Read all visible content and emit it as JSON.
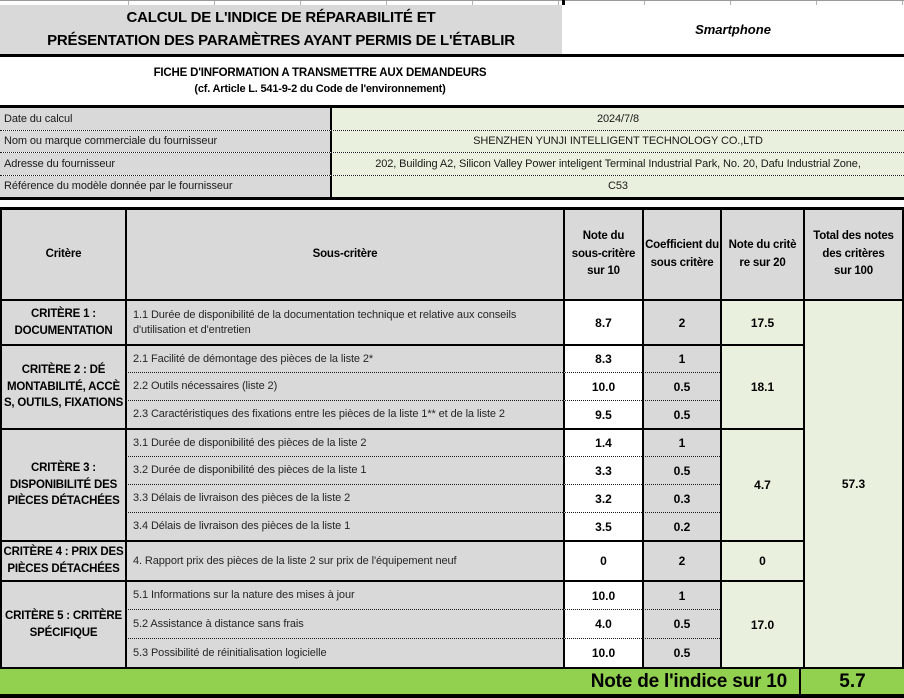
{
  "header": {
    "title": "CALCUL DE L'INDICE DE RÉPARABILITÉ ET\nPRÉSENTATION DES PARAMÈTRES AYANT PERMIS DE L'ÉTABLIR",
    "product": "Smartphone"
  },
  "subtitle": {
    "line1": "FICHE D'INFORMATION A TRANSMETTRE AUX DEMANDEURS",
    "line2": "(cf. Article L. 541-9-2 du Code de l'environnement)"
  },
  "info": {
    "rows": [
      {
        "label": "Date du calcul",
        "value": "2024/7/8"
      },
      {
        "label": "Nom ou marque commerciale du fournisseur",
        "value": "SHENZHEN YUNJI INTELLIGENT TECHNOLOGY CO.,LTD"
      },
      {
        "label": "Adresse du fournisseur",
        "value": "202, Building A2, Silicon Valley Power inteligent Terminal Industrial Park, No. 20, Dafu Industrial Zone,"
      },
      {
        "label": "Référence du modèle donnée par le fournisseur",
        "value": "C53"
      }
    ]
  },
  "table": {
    "headers": {
      "critere": "Critère",
      "sous_critere": "Sous-critère",
      "note10": "Note du\nsous-critère\nsur 10",
      "coeff": "Coefficient du\nsous critère",
      "note20": "Note du critè\nre sur 20",
      "total": "Total des notes\ndes critères\nsur 100"
    },
    "groups": [
      {
        "critere": "CRITÈRE 1 :\nDOCUMENTATION",
        "note20": "17.5",
        "rows": [
          {
            "label": "1.1 Durée de disponibilité de la documentation technique et relative aux conseils d'utilisation et d'entretien",
            "note": "8.7",
            "coeff": "2"
          }
        ]
      },
      {
        "critere": "CRITÈRE 2 : DÉ\nMONTABILITÉ, ACCÈ\nS, OUTILS, FIXATIONS",
        "note20": "18.1",
        "rows": [
          {
            "label": "2.1 Facilité de démontage des pièces de la liste 2*",
            "note": "8.3",
            "coeff": "1"
          },
          {
            "label": "2.2 Outils nécessaires (liste 2)",
            "note": "10.0",
            "coeff": "0.5"
          },
          {
            "label": "2.3 Caractéristiques des fixations entre les pièces de la liste 1** et de la liste 2",
            "note": "9.5",
            "coeff": "0.5"
          }
        ]
      },
      {
        "critere": "CRITÈRE 3 :\nDISPONIBILITÉ DES\nPIÈCES DÉTACHÉES",
        "note20": "4.7",
        "rows": [
          {
            "label": "3.1 Durée de disponibilité des pièces de la liste 2",
            "note": "1.4",
            "coeff": "1"
          },
          {
            "label": "3.2 Durée de disponibilité des pièces de la liste 1",
            "note": "3.3",
            "coeff": "0.5"
          },
          {
            "label": "3.3 Délais de livraison des pièces de la liste 2",
            "note": "3.2",
            "coeff": "0.3"
          },
          {
            "label": "3.4 Délais de livraison des pièces de la liste 1",
            "note": "3.5",
            "coeff": "0.2"
          }
        ]
      },
      {
        "critere": "CRITÈRE 4 : PRIX DES\nPIÈCES DÉTACHÉES",
        "note20": "0",
        "rows": [
          {
            "label": "4. Rapport prix des pièces de la liste 2 sur prix de l'équipement neuf",
            "note": "0",
            "coeff": "2"
          }
        ]
      },
      {
        "critere": "CRITÈRE 5 : CRITÈRE\nSPÉCIFIQUE",
        "note20": "17.0",
        "rows": [
          {
            "label": "5.1 Informations sur la nature des mises à jour",
            "note": "10.0",
            "coeff": "1"
          },
          {
            "label": "5.2 Assistance à distance sans frais",
            "note": "4.0",
            "coeff": "0.5"
          },
          {
            "label": "5.3 Possibilité de réinitialisation logicielle",
            "note": "10.0",
            "coeff": "0.5"
          }
        ]
      }
    ],
    "total": "57.3"
  },
  "footer": {
    "label": "Note de l'indice sur 10",
    "value": "5.7"
  },
  "colors": {
    "grey_fill": "#d9d9d9",
    "pale_green_fill": "#e9f0dd",
    "index_green_fill": "#92d050"
  }
}
